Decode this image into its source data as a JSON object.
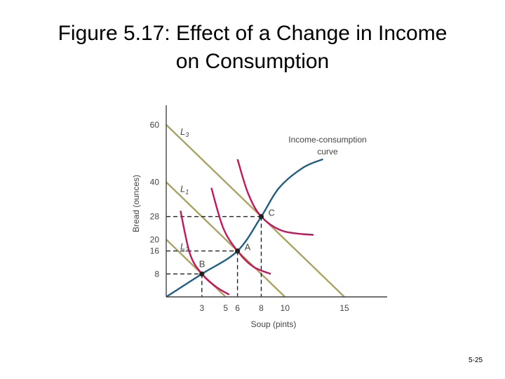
{
  "slide": {
    "title_line1": "Figure 5.17:  Effect of a Change in Income",
    "title_line2": "on Consumption",
    "page_number": "5-25"
  },
  "colors": {
    "budget_line": "#a9a463",
    "indifference_curve": "#c2185b",
    "icc_curve": "#1f5f86",
    "axis": "#444444"
  },
  "chart_data": {
    "type": "line",
    "xlabel": "Soup (pints)",
    "ylabel": "Bread (ounces)",
    "xlim": [
      0,
      18.6
    ],
    "ylim": [
      0,
      66.8
    ],
    "x_ticks": [
      3,
      5,
      6,
      8,
      10,
      15
    ],
    "y_ticks": [
      60,
      40,
      28,
      20,
      16,
      8
    ],
    "budget_lines": [
      {
        "name": "L",
        "sub": "3",
        "x_intercept": 15,
        "y_intercept": 60
      },
      {
        "name": "L",
        "sub": "1",
        "x_intercept": 10,
        "y_intercept": 40
      },
      {
        "name": "L",
        "sub": "2",
        "x_intercept": 5,
        "y_intercept": 20
      }
    ],
    "points": [
      {
        "label": "B",
        "x": 3,
        "y": 8
      },
      {
        "label": "A",
        "x": 6,
        "y": 16
      },
      {
        "label": "C",
        "x": 8,
        "y": 28
      }
    ],
    "indifference_curves": [
      {
        "points": [
          [
            1.2,
            30
          ],
          [
            2.0,
            15
          ],
          [
            3,
            8
          ],
          [
            4.2,
            3.5
          ],
          [
            5.3,
            0.8
          ]
        ]
      },
      {
        "points": [
          [
            3.8,
            38
          ],
          [
            4.8,
            24
          ],
          [
            6,
            16
          ],
          [
            7.3,
            10.6
          ],
          [
            8.8,
            8
          ]
        ]
      },
      {
        "points": [
          [
            6.0,
            48
          ],
          [
            6.9,
            36
          ],
          [
            8,
            28
          ],
          [
            9.8,
            23
          ],
          [
            12.4,
            21.6
          ]
        ]
      }
    ],
    "icc_label_line1": "Income-consumption",
    "icc_label_line2": "curve",
    "icc_curve": [
      [
        0,
        0
      ],
      [
        3,
        8
      ],
      [
        6,
        16
      ],
      [
        8,
        28
      ],
      [
        9.5,
        38
      ],
      [
        11.5,
        45
      ],
      [
        13.2,
        48
      ]
    ]
  }
}
